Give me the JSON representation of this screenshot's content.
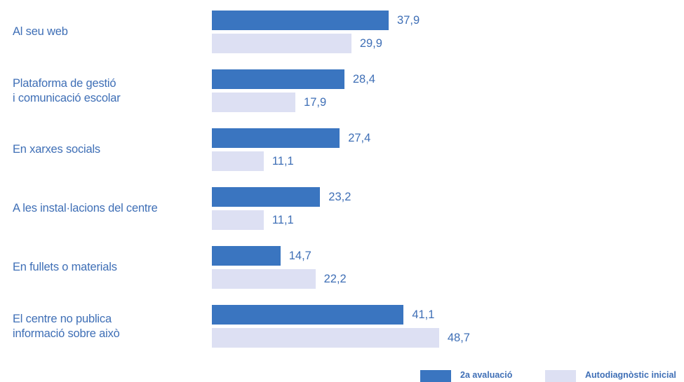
{
  "chart_data": {
    "type": "bar",
    "orientation": "horizontal",
    "categories": [
      [
        "Al seu web"
      ],
      [
        "Plataforma de gestió",
        "i comunicació escolar"
      ],
      [
        "En xarxes socials"
      ],
      [
        "A les instal·lacions del centre"
      ],
      [
        "En fullets o materials"
      ],
      [
        "El centre no publica",
        "informació sobre això"
      ]
    ],
    "series": [
      {
        "name": "2a avaluació",
        "color": "#3a75c0",
        "values": [
          37.9,
          28.4,
          27.4,
          23.2,
          14.7,
          41.1
        ],
        "labels": [
          "37,9",
          "28,4",
          "27,4",
          "23,2",
          "14,7",
          "41,1"
        ]
      },
      {
        "name": "Autodiagnòstic inicial",
        "color": "#dde0f3",
        "values": [
          29.9,
          17.9,
          11.1,
          11.1,
          22.2,
          48.7
        ],
        "labels": [
          "29,9",
          "17,9",
          "11,1",
          "11,1",
          "22,2",
          "48,7"
        ]
      }
    ],
    "xlim": [
      0,
      100
    ],
    "grid": false,
    "legend_position": "bottom-right"
  }
}
